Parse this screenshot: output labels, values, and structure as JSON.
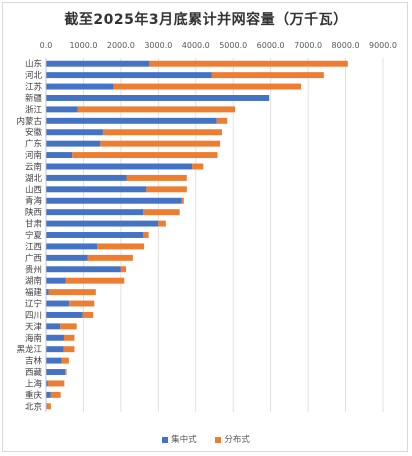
{
  "chart_data": {
    "type": "bar",
    "orientation": "horizontal",
    "stacked": true,
    "title": "截至2025年3月底累计并网容量（万千瓦）",
    "xlim": [
      0,
      9000
    ],
    "x_ticks": [
      "0.0",
      "1000.0",
      "2000.0",
      "3000.0",
      "4000.0",
      "5000.0",
      "6000.0",
      "7000.0",
      "8000.0",
      "9000.0"
    ],
    "grid": true,
    "legend_position": "bottom",
    "categories": [
      "山东",
      "河北",
      "江苏",
      "新疆",
      "浙江",
      "内蒙古",
      "安徽",
      "广东",
      "河南",
      "云南",
      "湖北",
      "山西",
      "青海",
      "陕西",
      "甘肃",
      "宁夏",
      "江西",
      "广西",
      "贵州",
      "湖南",
      "福建",
      "辽宁",
      "四川",
      "天津",
      "海南",
      "黑龙江",
      "吉林",
      "西藏",
      "上海",
      "重庆",
      "北京"
    ],
    "series": [
      {
        "name": "集中式",
        "color": "#4472c4",
        "values": [
          2750,
          4420,
          1800,
          5960,
          850,
          4560,
          1520,
          1450,
          700,
          3900,
          2150,
          2680,
          3620,
          2590,
          3000,
          2590,
          1370,
          1110,
          1990,
          520,
          70,
          620,
          980,
          380,
          480,
          470,
          420,
          510,
          50,
          130,
          20
        ]
      },
      {
        "name": "分布式",
        "color": "#ed7d31",
        "values": [
          5310,
          3000,
          5010,
          0,
          4200,
          280,
          3180,
          3200,
          3880,
          300,
          1610,
          1080,
          60,
          980,
          200,
          150,
          1250,
          1210,
          150,
          1570,
          1260,
          670,
          280,
          440,
          280,
          290,
          190,
          40,
          440,
          260,
          110
        ]
      }
    ]
  }
}
